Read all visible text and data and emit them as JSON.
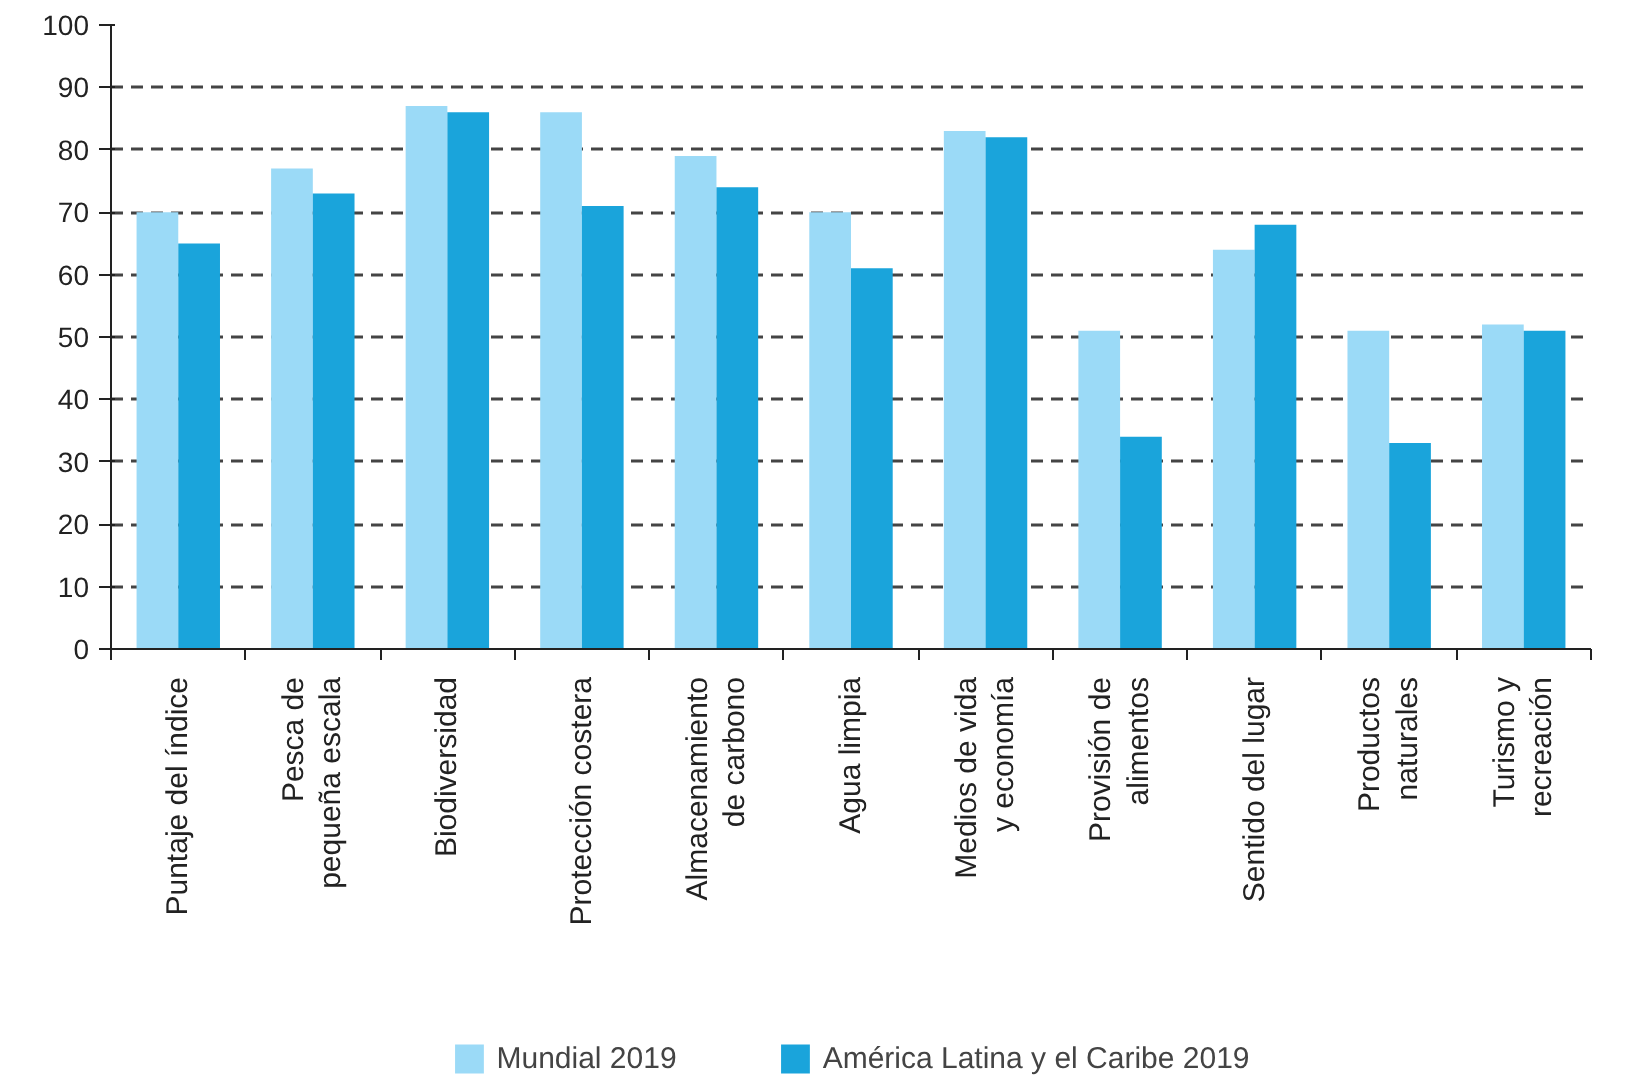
{
  "chart_data": {
    "type": "bar",
    "categories": [
      "Puntaje del índice",
      "Pesca de\npequeña escala",
      "Biodiversidad",
      "Protección costera",
      "Almacenamiento\nde carbono",
      "Agua limpia",
      "Medios de vida\ny economía",
      "Provisión de\nalimentos",
      "Sentido del lugar",
      "Productos\nnaturales",
      "Turismo y\nrecreación"
    ],
    "series": [
      {
        "name": "Mundial 2019",
        "color": "#9bdaf7",
        "values": [
          70,
          77,
          87,
          86,
          79,
          70,
          83,
          51,
          64,
          51,
          52
        ]
      },
      {
        "name": "América Latina y el Caribe 2019",
        "color": "#1aa4db",
        "values": [
          65,
          73,
          86,
          71,
          74,
          61,
          82,
          34,
          68,
          33,
          51
        ]
      }
    ],
    "ylim": [
      0,
      100
    ],
    "yticks": [
      0,
      10,
      20,
      30,
      40,
      50,
      60,
      70,
      80,
      90,
      100
    ],
    "grid": "y",
    "legend": "bottom"
  }
}
